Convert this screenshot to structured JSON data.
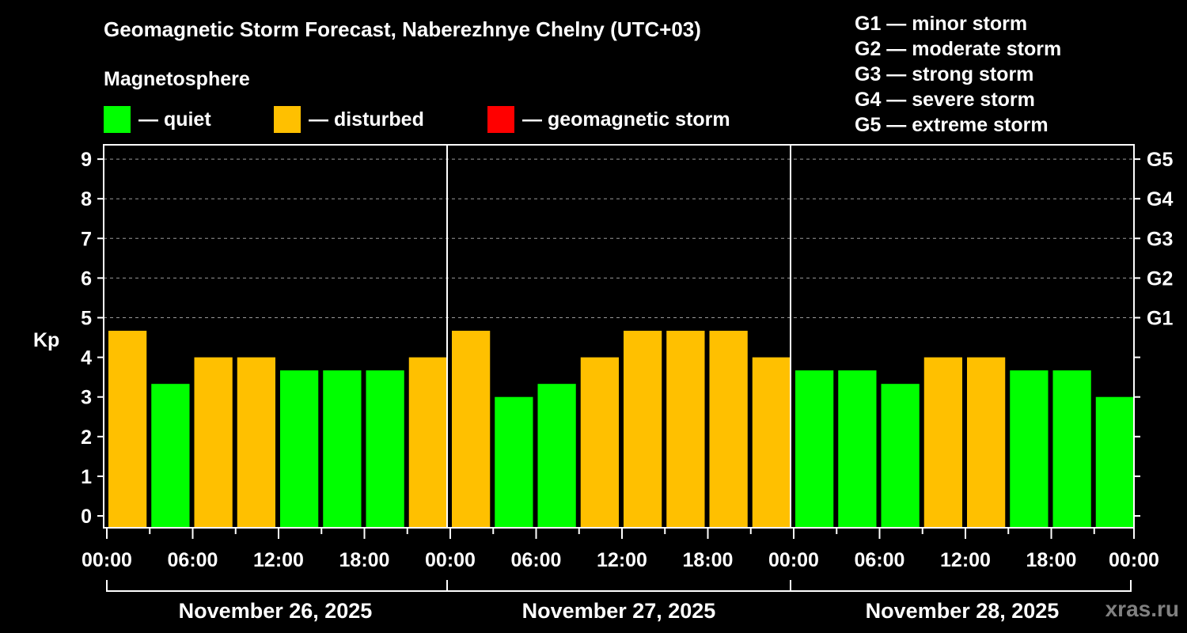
{
  "header": {
    "title": "Geomagnetic Storm Forecast, Naberezhnye Chelny (UTC+03)",
    "subtitle": "Magnetosphere"
  },
  "legend": [
    {
      "label": "— quiet",
      "color": "#00ff00"
    },
    {
      "label": "— disturbed",
      "color": "#ffc000"
    },
    {
      "label": "— geomagnetic storm",
      "color": "#ff0000"
    }
  ],
  "g_scale": [
    "G1 — minor storm",
    "G2 — moderate storm",
    "G3 — strong storm",
    "G4 — severe storm",
    "G5 — extreme storm"
  ],
  "watermark": "xras.ru",
  "colors": {
    "quiet": "#00ff00",
    "disturbed": "#ffc000",
    "storm": "#ff0000",
    "background": "#000000",
    "axis": "#ffffff",
    "grid": "#999999"
  },
  "chart_data": {
    "type": "bar",
    "title": "Geomagnetic Storm Forecast, Naberezhnye Chelny (UTC+03)",
    "ylabel": "Kp",
    "xlabel": "",
    "ylim": [
      0,
      9
    ],
    "yticks": [
      0,
      1,
      2,
      3,
      4,
      5,
      6,
      7,
      8,
      9
    ],
    "right_axis_labels": [
      {
        "kp": 5,
        "label": "G1"
      },
      {
        "kp": 6,
        "label": "G2"
      },
      {
        "kp": 7,
        "label": "G3"
      },
      {
        "kp": 8,
        "label": "G4"
      },
      {
        "kp": 9,
        "label": "G5"
      }
    ],
    "grid": "dashed horizontal at Kp 5-9",
    "xtick_labels": [
      "00:00",
      "06:00",
      "12:00",
      "18:00",
      "00:00",
      "06:00",
      "12:00",
      "18:00",
      "00:00",
      "06:00",
      "12:00",
      "18:00",
      "00:00"
    ],
    "days": [
      "November 26, 2025",
      "November 27, 2025",
      "November 28, 2025"
    ],
    "interval_hours": 3,
    "categories": [
      "Nov 26 00-03",
      "Nov 26 03-06",
      "Nov 26 06-09",
      "Nov 26 09-12",
      "Nov 26 12-15",
      "Nov 26 15-18",
      "Nov 26 18-21",
      "Nov 26 21-24",
      "Nov 27 00-03",
      "Nov 27 03-06",
      "Nov 27 06-09",
      "Nov 27 09-12",
      "Nov 27 12-15",
      "Nov 27 15-18",
      "Nov 27 18-21",
      "Nov 27 21-24",
      "Nov 28 00-03",
      "Nov 28 03-06",
      "Nov 28 06-09",
      "Nov 28 09-12",
      "Nov 28 12-15",
      "Nov 28 15-18",
      "Nov 28 18-21",
      "Nov 28 21-24"
    ],
    "values": [
      4.67,
      3.33,
      4.0,
      4.0,
      3.67,
      3.67,
      3.67,
      4.0,
      4.67,
      3.0,
      3.33,
      4.0,
      4.67,
      4.67,
      4.67,
      4.0,
      3.67,
      3.67,
      3.33,
      4.0,
      4.0,
      3.67,
      3.67,
      3.0
    ],
    "status": [
      "disturbed",
      "quiet",
      "disturbed",
      "disturbed",
      "quiet",
      "quiet",
      "quiet",
      "disturbed",
      "disturbed",
      "quiet",
      "quiet",
      "disturbed",
      "disturbed",
      "disturbed",
      "disturbed",
      "disturbed",
      "quiet",
      "quiet",
      "quiet",
      "disturbed",
      "disturbed",
      "quiet",
      "quiet",
      "quiet"
    ],
    "legend": [
      "quiet",
      "disturbed",
      "geomagnetic storm"
    ]
  }
}
